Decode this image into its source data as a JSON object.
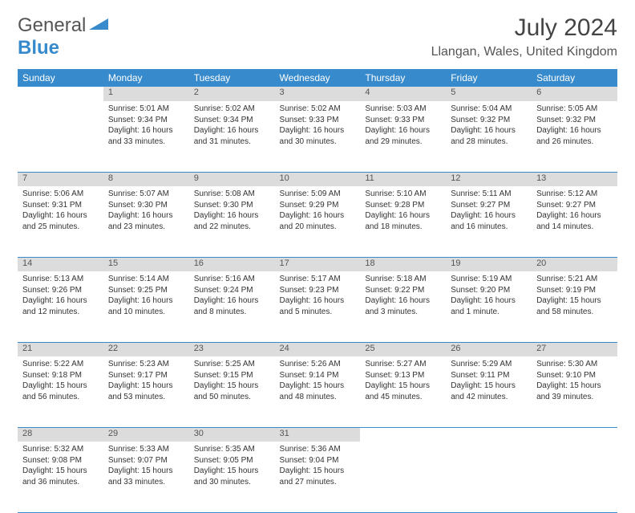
{
  "logo": {
    "text1": "General",
    "text2": "Blue"
  },
  "title": "July 2024",
  "location": "Llangan, Wales, United Kingdom",
  "colors": {
    "header_bg": "#378acc",
    "header_fg": "#ffffff",
    "daynum_bg": "#dcdcdc",
    "border": "#378acc",
    "text": "#333333"
  },
  "weekdays": [
    "Sunday",
    "Monday",
    "Tuesday",
    "Wednesday",
    "Thursday",
    "Friday",
    "Saturday"
  ],
  "weeks": [
    {
      "nums": [
        "",
        "1",
        "2",
        "3",
        "4",
        "5",
        "6"
      ],
      "cells": [
        {
          "empty": true
        },
        {
          "sunrise": "5:01 AM",
          "sunset": "9:34 PM",
          "daylight": "16 hours and 33 minutes."
        },
        {
          "sunrise": "5:02 AM",
          "sunset": "9:34 PM",
          "daylight": "16 hours and 31 minutes."
        },
        {
          "sunrise": "5:02 AM",
          "sunset": "9:33 PM",
          "daylight": "16 hours and 30 minutes."
        },
        {
          "sunrise": "5:03 AM",
          "sunset": "9:33 PM",
          "daylight": "16 hours and 29 minutes."
        },
        {
          "sunrise": "5:04 AM",
          "sunset": "9:32 PM",
          "daylight": "16 hours and 28 minutes."
        },
        {
          "sunrise": "5:05 AM",
          "sunset": "9:32 PM",
          "daylight": "16 hours and 26 minutes."
        }
      ]
    },
    {
      "nums": [
        "7",
        "8",
        "9",
        "10",
        "11",
        "12",
        "13"
      ],
      "cells": [
        {
          "sunrise": "5:06 AM",
          "sunset": "9:31 PM",
          "daylight": "16 hours and 25 minutes."
        },
        {
          "sunrise": "5:07 AM",
          "sunset": "9:30 PM",
          "daylight": "16 hours and 23 minutes."
        },
        {
          "sunrise": "5:08 AM",
          "sunset": "9:30 PM",
          "daylight": "16 hours and 22 minutes."
        },
        {
          "sunrise": "5:09 AM",
          "sunset": "9:29 PM",
          "daylight": "16 hours and 20 minutes."
        },
        {
          "sunrise": "5:10 AM",
          "sunset": "9:28 PM",
          "daylight": "16 hours and 18 minutes."
        },
        {
          "sunrise": "5:11 AM",
          "sunset": "9:27 PM",
          "daylight": "16 hours and 16 minutes."
        },
        {
          "sunrise": "5:12 AM",
          "sunset": "9:27 PM",
          "daylight": "16 hours and 14 minutes."
        }
      ]
    },
    {
      "nums": [
        "14",
        "15",
        "16",
        "17",
        "18",
        "19",
        "20"
      ],
      "cells": [
        {
          "sunrise": "5:13 AM",
          "sunset": "9:26 PM",
          "daylight": "16 hours and 12 minutes."
        },
        {
          "sunrise": "5:14 AM",
          "sunset": "9:25 PM",
          "daylight": "16 hours and 10 minutes."
        },
        {
          "sunrise": "5:16 AM",
          "sunset": "9:24 PM",
          "daylight": "16 hours and 8 minutes."
        },
        {
          "sunrise": "5:17 AM",
          "sunset": "9:23 PM",
          "daylight": "16 hours and 5 minutes."
        },
        {
          "sunrise": "5:18 AM",
          "sunset": "9:22 PM",
          "daylight": "16 hours and 3 minutes."
        },
        {
          "sunrise": "5:19 AM",
          "sunset": "9:20 PM",
          "daylight": "16 hours and 1 minute."
        },
        {
          "sunrise": "5:21 AM",
          "sunset": "9:19 PM",
          "daylight": "15 hours and 58 minutes."
        }
      ]
    },
    {
      "nums": [
        "21",
        "22",
        "23",
        "24",
        "25",
        "26",
        "27"
      ],
      "cells": [
        {
          "sunrise": "5:22 AM",
          "sunset": "9:18 PM",
          "daylight": "15 hours and 56 minutes."
        },
        {
          "sunrise": "5:23 AM",
          "sunset": "9:17 PM",
          "daylight": "15 hours and 53 minutes."
        },
        {
          "sunrise": "5:25 AM",
          "sunset": "9:15 PM",
          "daylight": "15 hours and 50 minutes."
        },
        {
          "sunrise": "5:26 AM",
          "sunset": "9:14 PM",
          "daylight": "15 hours and 48 minutes."
        },
        {
          "sunrise": "5:27 AM",
          "sunset": "9:13 PM",
          "daylight": "15 hours and 45 minutes."
        },
        {
          "sunrise": "5:29 AM",
          "sunset": "9:11 PM",
          "daylight": "15 hours and 42 minutes."
        },
        {
          "sunrise": "5:30 AM",
          "sunset": "9:10 PM",
          "daylight": "15 hours and 39 minutes."
        }
      ]
    },
    {
      "nums": [
        "28",
        "29",
        "30",
        "31",
        "",
        "",
        ""
      ],
      "cells": [
        {
          "sunrise": "5:32 AM",
          "sunset": "9:08 PM",
          "daylight": "15 hours and 36 minutes."
        },
        {
          "sunrise": "5:33 AM",
          "sunset": "9:07 PM",
          "daylight": "15 hours and 33 minutes."
        },
        {
          "sunrise": "5:35 AM",
          "sunset": "9:05 PM",
          "daylight": "15 hours and 30 minutes."
        },
        {
          "sunrise": "5:36 AM",
          "sunset": "9:04 PM",
          "daylight": "15 hours and 27 minutes."
        },
        {
          "empty": true
        },
        {
          "empty": true
        },
        {
          "empty": true
        }
      ]
    }
  ],
  "labels": {
    "sunrise": "Sunrise: ",
    "sunset": "Sunset: ",
    "daylight": "Daylight: "
  }
}
